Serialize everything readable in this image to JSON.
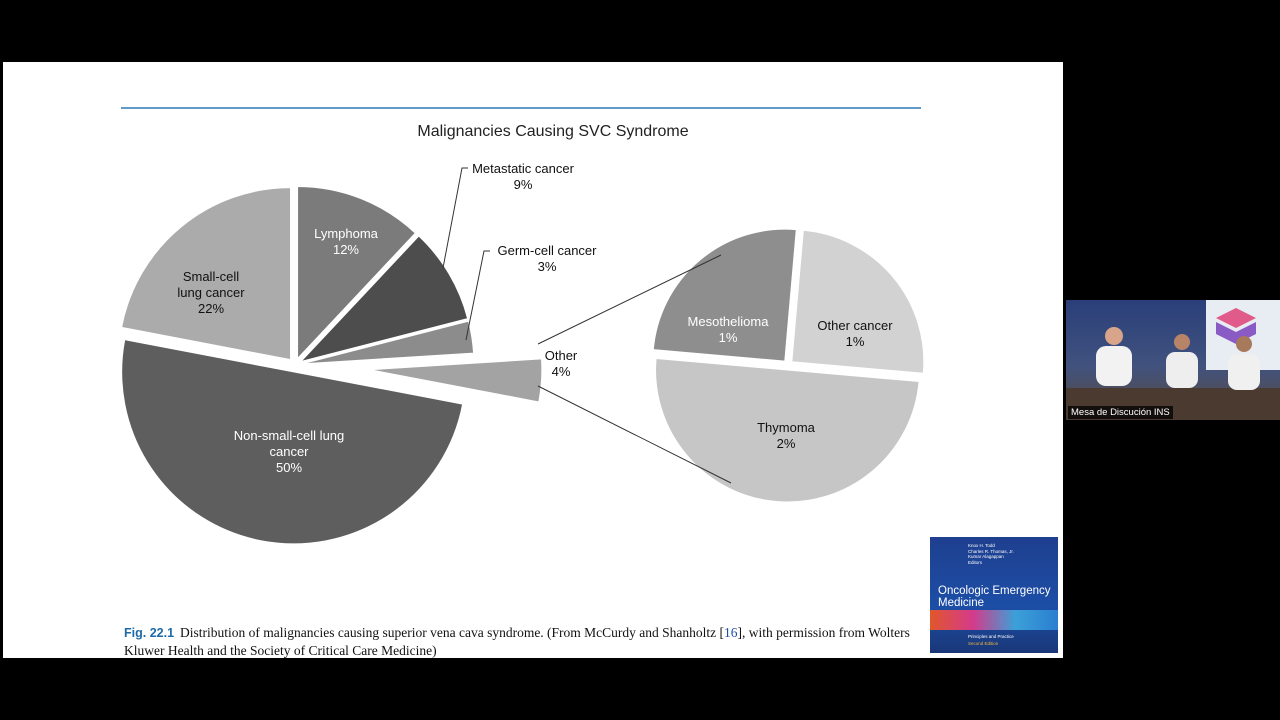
{
  "chart_data": [
    {
      "type": "pie",
      "title": "Malignancies Causing SVC Syndrome",
      "categories": [
        "Lymphoma",
        "Metastatic cancer",
        "Germ-cell cancer",
        "Other",
        "Non-small-cell lung cancer",
        "Small-cell lung cancer"
      ],
      "values": [
        12,
        9,
        3,
        4,
        50,
        22
      ],
      "value_labels": [
        "12%",
        "9%",
        "3%",
        "4%",
        "50%",
        "22%"
      ],
      "colors": [
        "#7b7b7b",
        "#4d4d4d",
        "#8c8c8c",
        "#a3a3a3",
        "#5e5e5e",
        "#ababab"
      ]
    },
    {
      "type": "pie",
      "categories": [
        "Other cancer",
        "Thymoma",
        "Mesothelioma"
      ],
      "values": [
        1,
        2,
        1
      ],
      "value_labels": [
        "1%",
        "2%",
        "1%"
      ],
      "colors": [
        "#d2d2d2",
        "#c6c6c6",
        "#8e8e8e"
      ]
    }
  ],
  "caption": {
    "label": "Fig. 22.1",
    "text_before": "Distribution of malignancies causing superior vena cava syndrome. (From McCurdy and Shanholtz [",
    "ref": "16",
    "text_after": "], with permission from Wolters Kluwer Health and the Society of Critical Care Medicine)"
  },
  "video": {
    "label": "Mesa de Discución INS"
  },
  "book": {
    "authors": [
      "Knox H. Todd",
      "Charles R. Thomas, Jr.",
      "Kumar Alagappan"
    ],
    "editors": "Editors",
    "title": "Oncologic Emergency Medicine",
    "subtitle": "Principles and Practice",
    "edition": "Second Edition"
  }
}
